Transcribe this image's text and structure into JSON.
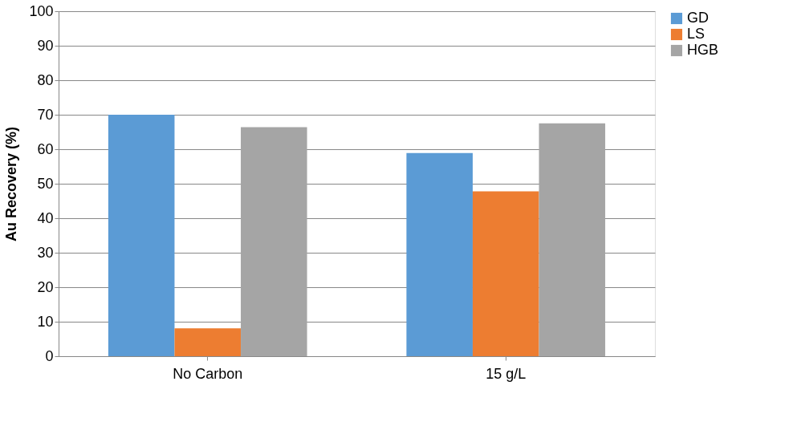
{
  "chart_data": {
    "type": "bar",
    "ylabel": "Au Recovery (%)",
    "categories": [
      "No Carbon",
      "15 g/L"
    ],
    "series": [
      {
        "name": "GD",
        "color": "#5b9bd5",
        "values": [
          70,
          58.9
        ]
      },
      {
        "name": "LS",
        "color": "#ed7d31",
        "values": [
          8.1,
          47.8
        ]
      },
      {
        "name": "HGB",
        "color": "#a5a5a5",
        "values": [
          66.4,
          67.5
        ]
      }
    ],
    "ylim": [
      0,
      100
    ],
    "yticks": [
      0,
      10,
      20,
      30,
      40,
      50,
      60,
      70,
      80,
      90,
      100
    ],
    "grid": "y",
    "legend": "right"
  }
}
